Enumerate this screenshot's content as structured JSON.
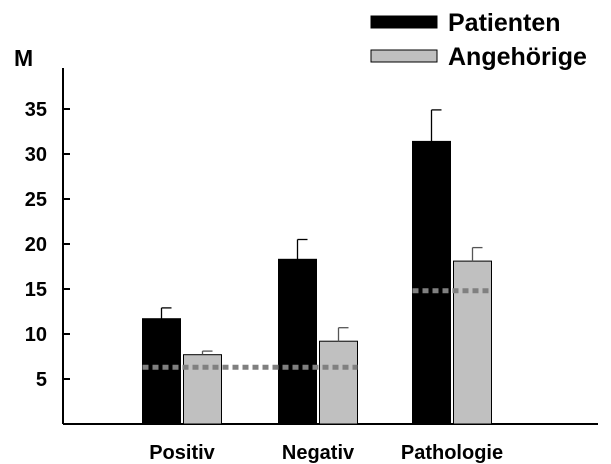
{
  "chart_data": {
    "type": "bar",
    "title": "",
    "xlabel": "",
    "ylabel": "M",
    "ylim": [
      0,
      40
    ],
    "yticks": [
      5,
      10,
      15,
      20,
      25,
      30,
      35
    ],
    "categories": [
      "Positiv",
      "Negativ",
      "Pathologie"
    ],
    "series": [
      {
        "name": "Patienten",
        "values": [
          11.7,
          18.3,
          31.4
        ],
        "errors": [
          1.2,
          2.2,
          3.5
        ],
        "color": "#000000"
      },
      {
        "name": "Angehörige",
        "values": [
          7.7,
          9.2,
          18.1
        ],
        "errors": [
          0.4,
          1.5,
          1.5
        ],
        "color": "#c0c0c0"
      }
    ],
    "reference_lines": [
      {
        "value": 6.3,
        "from_category": 0,
        "to_category": 1
      },
      {
        "value": 14.8,
        "from_category": 2,
        "to_category": 2
      }
    ],
    "legend_position": "top-right",
    "grid": false
  }
}
